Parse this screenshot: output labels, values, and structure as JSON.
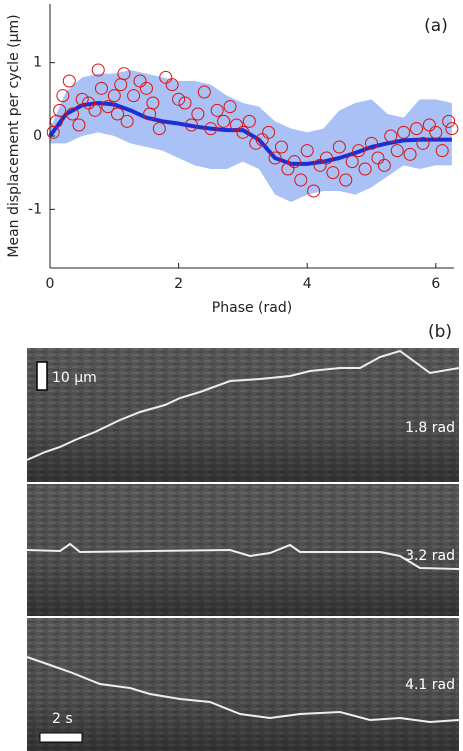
{
  "chart_data": {
    "type": "scatter",
    "title": "(a)",
    "xlabel": "Phase (rad)",
    "ylabel": "Mean displacement per cycle (μm)",
    "xlim": [
      0,
      6.283
    ],
    "ylim": [
      -1.8,
      1.8
    ],
    "xticks": [
      0,
      2,
      4,
      6
    ],
    "yticks": [
      -1,
      0,
      1
    ],
    "series": [
      {
        "type": "area",
        "color": "#a9c1f5",
        "x": [
          0,
          0.25,
          0.5,
          0.75,
          1,
          1.25,
          1.5,
          1.75,
          2,
          2.25,
          2.5,
          2.75,
          3,
          3.25,
          3.5,
          3.75,
          4,
          4.25,
          4.5,
          4.75,
          5,
          5.25,
          5.5,
          5.75,
          6,
          6.25
        ],
        "upper": [
          0.1,
          0.6,
          0.8,
          0.85,
          0.85,
          0.9,
          0.85,
          0.8,
          0.75,
          0.75,
          0.7,
          0.55,
          0.45,
          0.4,
          0.2,
          0.1,
          0.05,
          0.1,
          0.35,
          0.45,
          0.5,
          0.3,
          0.25,
          0.5,
          0.5,
          0.45
        ],
        "lower": [
          -0.1,
          -0.1,
          0,
          0.05,
          0,
          -0.1,
          -0.15,
          -0.2,
          -0.3,
          -0.4,
          -0.45,
          -0.45,
          -0.35,
          -0.45,
          -0.8,
          -0.9,
          -0.8,
          -0.75,
          -0.75,
          -0.8,
          -0.7,
          -0.55,
          -0.4,
          -0.45,
          -0.4,
          -0.4
        ]
      },
      {
        "type": "line",
        "color": "#1a2fd6",
        "x": [
          0,
          0.25,
          0.5,
          0.75,
          1,
          1.25,
          1.5,
          1.75,
          2,
          2.25,
          2.5,
          2.75,
          3,
          3.25,
          3.5,
          3.75,
          4,
          4.25,
          4.5,
          4.75,
          5,
          5.25,
          5.5,
          5.75,
          6,
          6.25
        ],
        "values": [
          0,
          0.3,
          0.42,
          0.45,
          0.43,
          0.35,
          0.25,
          0.2,
          0.17,
          0.13,
          0.1,
          0.08,
          0.08,
          -0.05,
          -0.3,
          -0.38,
          -0.38,
          -0.35,
          -0.3,
          -0.23,
          -0.15,
          -0.1,
          -0.06,
          -0.05,
          -0.05,
          -0.05
        ]
      },
      {
        "type": "scatter",
        "color": "#e01010",
        "x": [
          0.05,
          0.1,
          0.15,
          0.2,
          0.3,
          0.35,
          0.45,
          0.5,
          0.6,
          0.7,
          0.75,
          0.8,
          0.9,
          1.0,
          1.05,
          1.1,
          1.15,
          1.2,
          1.3,
          1.4,
          1.5,
          1.55,
          1.6,
          1.7,
          1.8,
          1.9,
          2.0,
          2.1,
          2.2,
          2.3,
          2.4,
          2.5,
          2.6,
          2.7,
          2.8,
          2.9,
          3.0,
          3.1,
          3.2,
          3.3,
          3.4,
          3.5,
          3.6,
          3.7,
          3.8,
          3.9,
          4.0,
          4.1,
          4.2,
          4.3,
          4.4,
          4.5,
          4.6,
          4.7,
          4.8,
          4.9,
          5.0,
          5.1,
          5.2,
          5.3,
          5.4,
          5.5,
          5.6,
          5.7,
          5.8,
          5.9,
          6.0,
          6.1,
          6.2,
          6.25
        ],
        "values": [
          0.05,
          0.2,
          0.35,
          0.55,
          0.75,
          0.3,
          0.15,
          0.5,
          0.45,
          0.35,
          0.9,
          0.65,
          0.4,
          0.55,
          0.3,
          0.7,
          0.85,
          0.2,
          0.55,
          0.75,
          0.65,
          0.3,
          0.45,
          0.1,
          0.8,
          0.7,
          0.5,
          0.45,
          0.15,
          0.3,
          0.6,
          0.1,
          0.35,
          0.2,
          0.4,
          0.15,
          0.05,
          0.2,
          -0.1,
          -0.05,
          0.05,
          -0.3,
          -0.15,
          -0.45,
          -0.35,
          -0.6,
          -0.2,
          -0.75,
          -0.4,
          -0.3,
          -0.5,
          -0.15,
          -0.6,
          -0.35,
          -0.2,
          -0.45,
          -0.1,
          -0.3,
          -0.4,
          0.0,
          -0.2,
          0.05,
          -0.25,
          0.1,
          -0.1,
          0.15,
          0.05,
          -0.2,
          0.2,
          0.1
        ]
      }
    ]
  },
  "panel_b": {
    "title": "(b)",
    "scale_length": "10 μm",
    "scale_time": "2 s",
    "labels": [
      "1.8 rad",
      "3.2 rad",
      "4.1 rad"
    ]
  }
}
